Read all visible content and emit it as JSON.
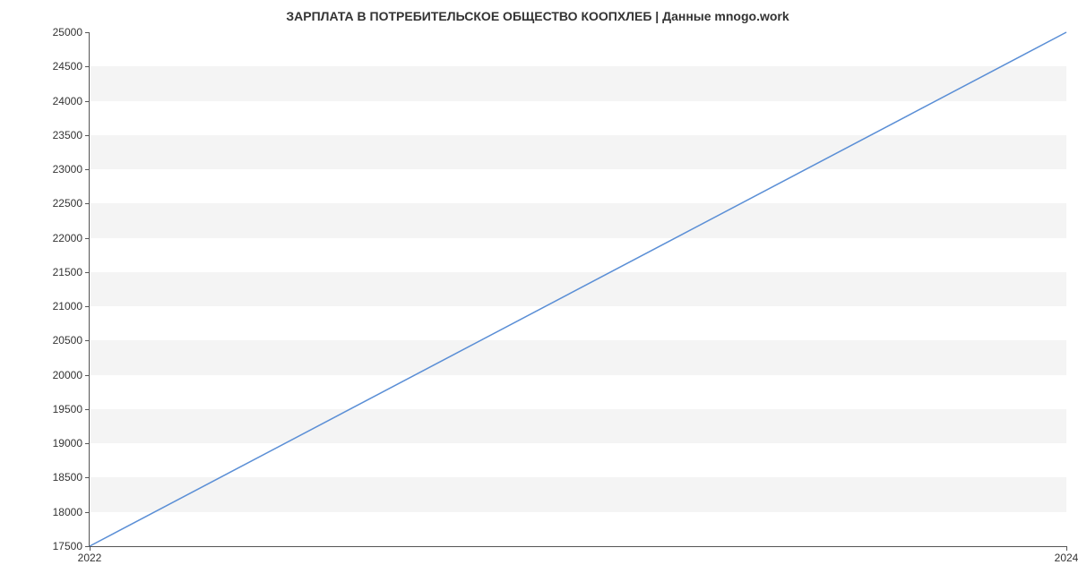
{
  "chart": {
    "type": "line",
    "title": "ЗАРПЛАТА В ПОТРЕБИТЕЛЬСКОЕ ОБЩЕСТВО КООПХЛЕБ | Данные mnogo.work",
    "title_fontsize": 14,
    "title_color": "#333333",
    "background_color": "#ffffff",
    "band_color": "#f4f4f4",
    "axis_color": "#555555",
    "tick_label_color": "#333333",
    "tick_label_fontsize": 12,
    "line_color": "#5b8fd6",
    "line_width": 1.5,
    "x": {
      "min": 2022,
      "max": 2024,
      "ticks": [
        {
          "pos": 2022,
          "label": "2022"
        },
        {
          "pos": 2024,
          "label": "2024"
        }
      ]
    },
    "y": {
      "min": 17500,
      "max": 25000,
      "tick_step": 500,
      "ticks": [
        {
          "pos": 17500,
          "label": "17500"
        },
        {
          "pos": 18000,
          "label": "18000"
        },
        {
          "pos": 18500,
          "label": "18500"
        },
        {
          "pos": 19000,
          "label": "19000"
        },
        {
          "pos": 19500,
          "label": "19500"
        },
        {
          "pos": 20000,
          "label": "20000"
        },
        {
          "pos": 20500,
          "label": "20500"
        },
        {
          "pos": 21000,
          "label": "21000"
        },
        {
          "pos": 21500,
          "label": "21500"
        },
        {
          "pos": 22000,
          "label": "22000"
        },
        {
          "pos": 22500,
          "label": "22500"
        },
        {
          "pos": 23000,
          "label": "23000"
        },
        {
          "pos": 23500,
          "label": "23500"
        },
        {
          "pos": 24000,
          "label": "24000"
        },
        {
          "pos": 24500,
          "label": "24500"
        },
        {
          "pos": 25000,
          "label": "25000"
        }
      ]
    },
    "series": [
      {
        "x": 2022,
        "y": 17500
      },
      {
        "x": 2024,
        "y": 25000
      }
    ]
  }
}
